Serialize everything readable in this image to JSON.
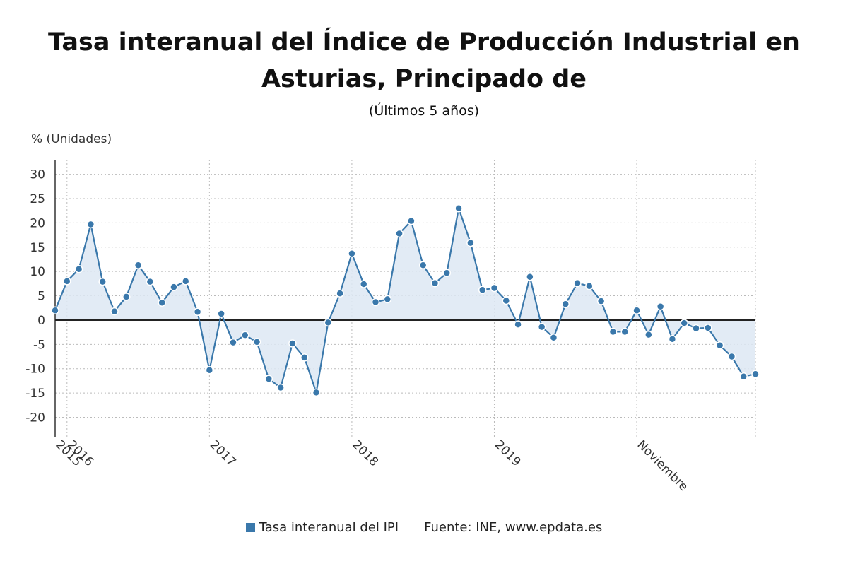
{
  "chart_data": {
    "type": "area",
    "title": "Tasa interanual del Índice de Producción Industrial en Asturias, Principado de",
    "subtitle": "(Últimos 5 años)",
    "ylabel": "% (Unidades)",
    "xlabel": "",
    "ylim": [
      -24,
      33
    ],
    "yticks": [
      30,
      25,
      20,
      15,
      10,
      5,
      0,
      -5,
      -10,
      -15,
      -20
    ],
    "x_tick_labels": [
      "2015",
      "2016",
      "2017",
      "2018",
      "2019",
      "Noviembre"
    ],
    "grid": true,
    "legend_position": "bottom",
    "colors": {
      "line": "#3a78ab",
      "fill": "#dde8f3",
      "zero_line": "#222222",
      "grid": "#bbbbbb"
    },
    "series": [
      {
        "name": "Tasa interanual del IPI",
        "x": [
          "2014-12",
          "2015-01",
          "2015-02",
          "2015-03",
          "2015-04",
          "2015-05",
          "2015-06",
          "2015-07",
          "2015-08",
          "2015-09",
          "2015-10",
          "2015-11",
          "2015-12",
          "2016-01",
          "2016-02",
          "2016-03",
          "2016-04",
          "2016-05",
          "2016-06",
          "2016-07",
          "2016-08",
          "2016-09",
          "2016-10",
          "2016-11",
          "2016-12",
          "2017-01",
          "2017-02",
          "2017-03",
          "2017-04",
          "2017-05",
          "2017-06",
          "2017-07",
          "2017-08",
          "2017-09",
          "2017-10",
          "2017-11",
          "2017-12",
          "2018-01",
          "2018-02",
          "2018-03",
          "2018-04",
          "2018-05",
          "2018-06",
          "2018-07",
          "2018-08",
          "2018-09",
          "2018-10",
          "2018-11",
          "2018-12",
          "2019-01",
          "2019-02",
          "2019-03",
          "2019-04",
          "2019-05",
          "2019-06",
          "2019-07",
          "2019-08",
          "2019-09",
          "2019-10",
          "2019-11"
        ],
        "values": [
          2.0,
          8.0,
          10.5,
          19.7,
          7.9,
          1.8,
          4.8,
          11.3,
          7.9,
          3.6,
          6.8,
          8.0,
          1.7,
          -10.3,
          1.3,
          -4.6,
          -3.1,
          -4.5,
          -12.1,
          -13.9,
          -4.8,
          -7.7,
          -14.9,
          -0.5,
          5.5,
          13.7,
          7.4,
          3.7,
          4.3,
          17.8,
          20.4,
          11.3,
          7.6,
          9.7,
          23.0,
          15.9,
          6.2,
          6.6,
          4.0,
          -0.9,
          8.9,
          -1.4,
          -3.6,
          3.3,
          7.6,
          7.0,
          3.9,
          -2.4,
          -2.4,
          2.0,
          -3.0,
          2.8,
          -3.9,
          -0.6,
          -1.7,
          -1.6,
          -5.2,
          -7.5,
          -11.6,
          -11.1
        ]
      }
    ],
    "source": "Fuente: INE, www.epdata.es"
  }
}
